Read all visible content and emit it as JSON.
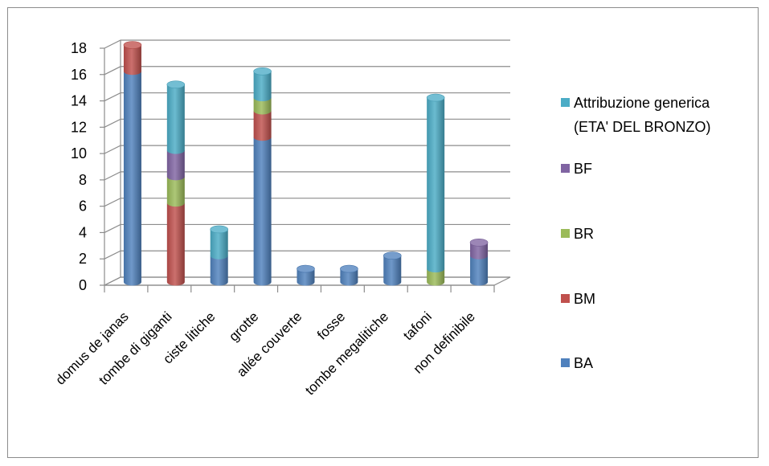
{
  "chart_data": {
    "type": "bar",
    "stacked": true,
    "three_d": true,
    "categories": [
      "domus de janas",
      "tombe di giganti",
      "ciste litiche",
      "grotte",
      "allée couverte",
      "fosse",
      "tombe megalitiche",
      "tafoni",
      "non definibile"
    ],
    "series": [
      {
        "name": "BA",
        "color": "#4F81BD",
        "values": [
          16,
          0,
          2,
          11,
          1,
          1,
          2,
          0,
          2
        ]
      },
      {
        "name": "BM",
        "color": "#C0504D",
        "values": [
          2,
          6,
          0,
          2,
          0,
          0,
          0,
          0,
          0
        ]
      },
      {
        "name": "BR",
        "color": "#9BBB59",
        "values": [
          0,
          2,
          0,
          1,
          0,
          0,
          0,
          1,
          0
        ]
      },
      {
        "name": "BF",
        "color": "#8064A2",
        "values": [
          0,
          2,
          0,
          0,
          0,
          0,
          0,
          0,
          1
        ]
      },
      {
        "name": "Attribuzione generica (ETA' DEL BRONZO)",
        "label_lines": [
          "Attribuzione generica",
          "(ETA' DEL BRONZO)"
        ],
        "color": "#4BACC6",
        "values": [
          0,
          5,
          2,
          2,
          0,
          0,
          0,
          13,
          0
        ]
      }
    ],
    "y_ticks": [
      "0",
      "2",
      "4",
      "6",
      "8",
      "10",
      "12",
      "14",
      "16",
      "18"
    ],
    "ylim": [
      0,
      18
    ],
    "grid": true,
    "legend_position": "right",
    "title": "",
    "xlabel": "",
    "ylabel": ""
  }
}
